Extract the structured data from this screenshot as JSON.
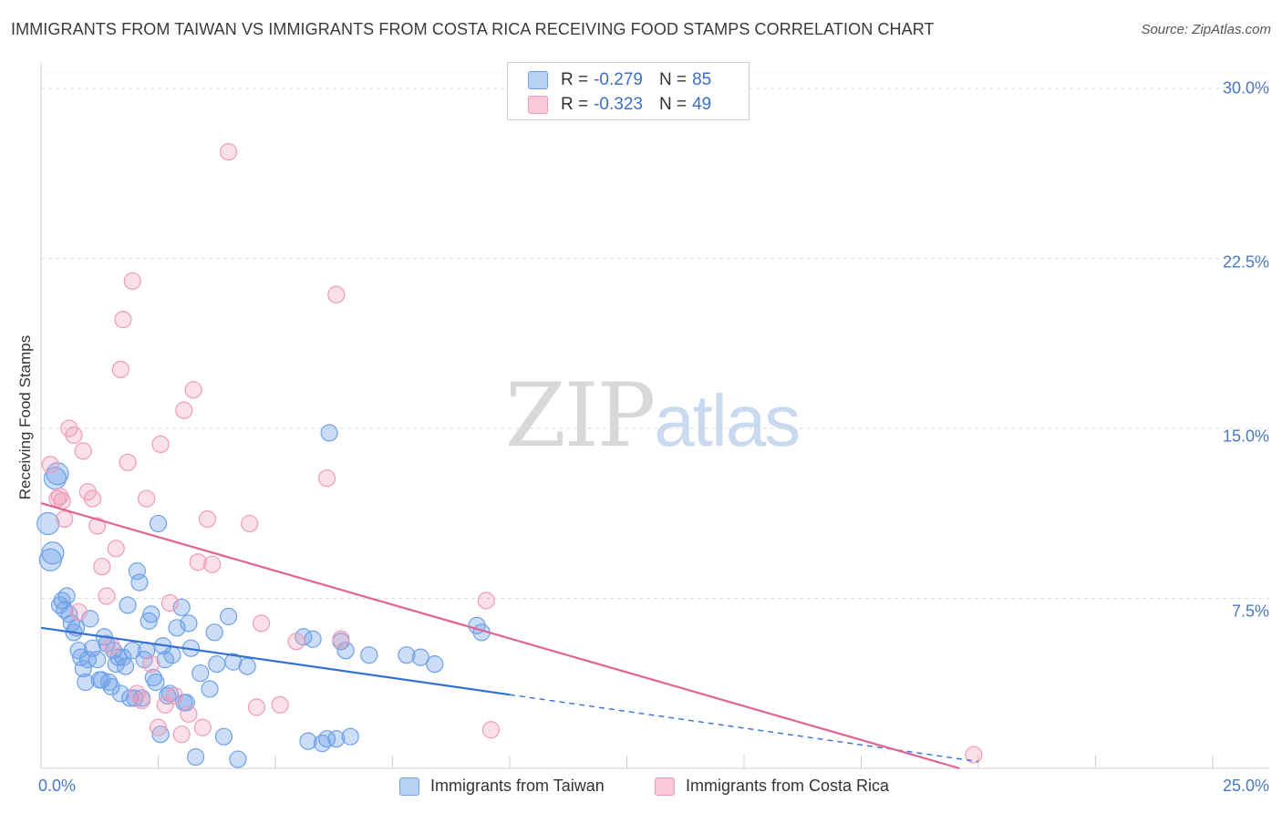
{
  "title": "IMMIGRANTS FROM TAIWAN VS IMMIGRANTS FROM COSTA RICA RECEIVING FOOD STAMPS CORRELATION CHART",
  "source": "Source: ZipAtlas.com",
  "watermark": {
    "zip": "ZIP",
    "atlas": "atlas"
  },
  "colors": {
    "taiwan": "#6ea0e8",
    "taiwan_line": "#3571d1",
    "costa_rica": "#f09ab7",
    "costa_rica_line": "#e0648f"
  },
  "legend": {
    "rows": [
      {
        "r_label": "R =",
        "r_value": "-0.279",
        "n_label": "N =",
        "n_value": "85"
      },
      {
        "r_label": "R =",
        "r_value": "-0.323",
        "n_label": "N =",
        "n_value": "49"
      }
    ]
  },
  "chart_data": {
    "type": "scatter",
    "title": "IMMIGRANTS FROM TAIWAN VS IMMIGRANTS FROM COSTA RICA RECEIVING FOOD STAMPS CORRELATION CHART",
    "xlabel": "",
    "ylabel": "Receiving Food Stamps",
    "xlim": [
      0,
      25
    ],
    "ylim": [
      0,
      31
    ],
    "x_tick_labels": [
      "0.0%",
      "25.0%"
    ],
    "y_ticks": [
      {
        "value": 7.5,
        "label": "7.5%"
      },
      {
        "value": 15.0,
        "label": "15.0%"
      },
      {
        "value": 22.5,
        "label": "22.5%"
      },
      {
        "value": 30.0,
        "label": "30.0%"
      }
    ],
    "grid": true,
    "series": [
      {
        "name": "Immigrants from Taiwan",
        "r": -0.279,
        "n": 85,
        "trend": {
          "x1": 0.0,
          "y1": 6.2,
          "x2": 10.0,
          "y2": 3.25,
          "dashed_to_x": 20.0,
          "dashed_to_y": 0.3
        },
        "points": [
          [
            0.15,
            10.8
          ],
          [
            0.2,
            9.2
          ],
          [
            0.25,
            9.5
          ],
          [
            0.3,
            12.8
          ],
          [
            0.35,
            13.0
          ],
          [
            0.4,
            7.2
          ],
          [
            0.45,
            7.4
          ],
          [
            0.5,
            7.0
          ],
          [
            0.55,
            7.6
          ],
          [
            0.6,
            6.8
          ],
          [
            0.65,
            6.4
          ],
          [
            0.7,
            6.0
          ],
          [
            0.75,
            6.2
          ],
          [
            0.8,
            5.2
          ],
          [
            0.85,
            4.9
          ],
          [
            0.9,
            4.4
          ],
          [
            0.95,
            3.8
          ],
          [
            1.0,
            4.8
          ],
          [
            1.05,
            6.6
          ],
          [
            1.1,
            5.3
          ],
          [
            1.2,
            4.8
          ],
          [
            1.25,
            3.9
          ],
          [
            1.3,
            3.9
          ],
          [
            1.35,
            5.8
          ],
          [
            1.4,
            5.5
          ],
          [
            1.45,
            3.8
          ],
          [
            1.5,
            3.6
          ],
          [
            1.55,
            5.2
          ],
          [
            1.6,
            4.6
          ],
          [
            1.65,
            4.9
          ],
          [
            1.7,
            3.3
          ],
          [
            1.75,
            4.9
          ],
          [
            1.8,
            4.5
          ],
          [
            1.85,
            7.2
          ],
          [
            1.9,
            3.1
          ],
          [
            1.95,
            5.2
          ],
          [
            2.0,
            3.1
          ],
          [
            2.05,
            8.7
          ],
          [
            2.1,
            8.2
          ],
          [
            2.15,
            3.1
          ],
          [
            2.2,
            4.8
          ],
          [
            2.25,
            5.2
          ],
          [
            2.3,
            6.5
          ],
          [
            2.35,
            6.8
          ],
          [
            2.4,
            4.0
          ],
          [
            2.45,
            3.8
          ],
          [
            2.5,
            10.8
          ],
          [
            2.55,
            1.5
          ],
          [
            2.6,
            5.4
          ],
          [
            2.65,
            4.8
          ],
          [
            2.7,
            3.2
          ],
          [
            2.75,
            3.3
          ],
          [
            2.8,
            5.0
          ],
          [
            2.9,
            6.2
          ],
          [
            3.0,
            7.1
          ],
          [
            3.05,
            2.9
          ],
          [
            3.1,
            2.9
          ],
          [
            3.15,
            6.4
          ],
          [
            3.2,
            5.3
          ],
          [
            3.3,
            0.5
          ],
          [
            3.4,
            4.2
          ],
          [
            3.6,
            3.5
          ],
          [
            3.7,
            6.0
          ],
          [
            3.75,
            4.6
          ],
          [
            3.9,
            1.4
          ],
          [
            4.0,
            6.7
          ],
          [
            4.1,
            4.7
          ],
          [
            4.2,
            0.4
          ],
          [
            4.4,
            4.5
          ],
          [
            5.6,
            5.8
          ],
          [
            5.7,
            1.2
          ],
          [
            5.8,
            5.7
          ],
          [
            6.0,
            1.1
          ],
          [
            6.1,
            1.3
          ],
          [
            6.15,
            14.8
          ],
          [
            6.3,
            1.3
          ],
          [
            6.4,
            5.6
          ],
          [
            6.5,
            5.2
          ],
          [
            6.6,
            1.4
          ],
          [
            7.0,
            5.0
          ],
          [
            7.8,
            5.0
          ],
          [
            8.1,
            4.9
          ],
          [
            8.4,
            4.6
          ],
          [
            9.3,
            6.3
          ],
          [
            9.4,
            6.0
          ]
        ]
      },
      {
        "name": "Immigrants from Costa Rica",
        "r": -0.323,
        "n": 49,
        "trend": {
          "x1": 0.0,
          "y1": 11.7,
          "x2": 19.6,
          "y2": 0.0
        },
        "points": [
          [
            0.2,
            13.4
          ],
          [
            0.35,
            11.9
          ],
          [
            0.4,
            12.0
          ],
          [
            0.45,
            11.8
          ],
          [
            0.5,
            11.0
          ],
          [
            0.6,
            15.0
          ],
          [
            0.7,
            14.7
          ],
          [
            0.8,
            6.9
          ],
          [
            0.9,
            14.0
          ],
          [
            1.0,
            12.2
          ],
          [
            1.1,
            11.9
          ],
          [
            1.2,
            10.7
          ],
          [
            1.3,
            8.9
          ],
          [
            1.4,
            7.6
          ],
          [
            1.5,
            5.4
          ],
          [
            1.6,
            9.7
          ],
          [
            1.7,
            17.6
          ],
          [
            1.75,
            19.8
          ],
          [
            1.85,
            13.5
          ],
          [
            1.95,
            21.5
          ],
          [
            2.05,
            3.3
          ],
          [
            2.15,
            3.0
          ],
          [
            2.25,
            11.9
          ],
          [
            2.35,
            4.6
          ],
          [
            2.5,
            1.8
          ],
          [
            2.55,
            14.3
          ],
          [
            2.65,
            2.8
          ],
          [
            2.75,
            7.3
          ],
          [
            2.85,
            3.2
          ],
          [
            3.0,
            1.5
          ],
          [
            3.05,
            15.8
          ],
          [
            3.15,
            2.4
          ],
          [
            3.25,
            16.7
          ],
          [
            3.35,
            9.1
          ],
          [
            3.45,
            1.8
          ],
          [
            3.55,
            11.0
          ],
          [
            3.65,
            9.0
          ],
          [
            4.0,
            27.2
          ],
          [
            4.45,
            10.8
          ],
          [
            4.6,
            2.7
          ],
          [
            4.7,
            6.4
          ],
          [
            5.1,
            2.8
          ],
          [
            5.45,
            5.6
          ],
          [
            6.1,
            12.8
          ],
          [
            6.3,
            20.9
          ],
          [
            6.4,
            5.7
          ],
          [
            9.5,
            7.4
          ],
          [
            9.6,
            1.7
          ],
          [
            19.9,
            0.6
          ]
        ]
      }
    ]
  }
}
